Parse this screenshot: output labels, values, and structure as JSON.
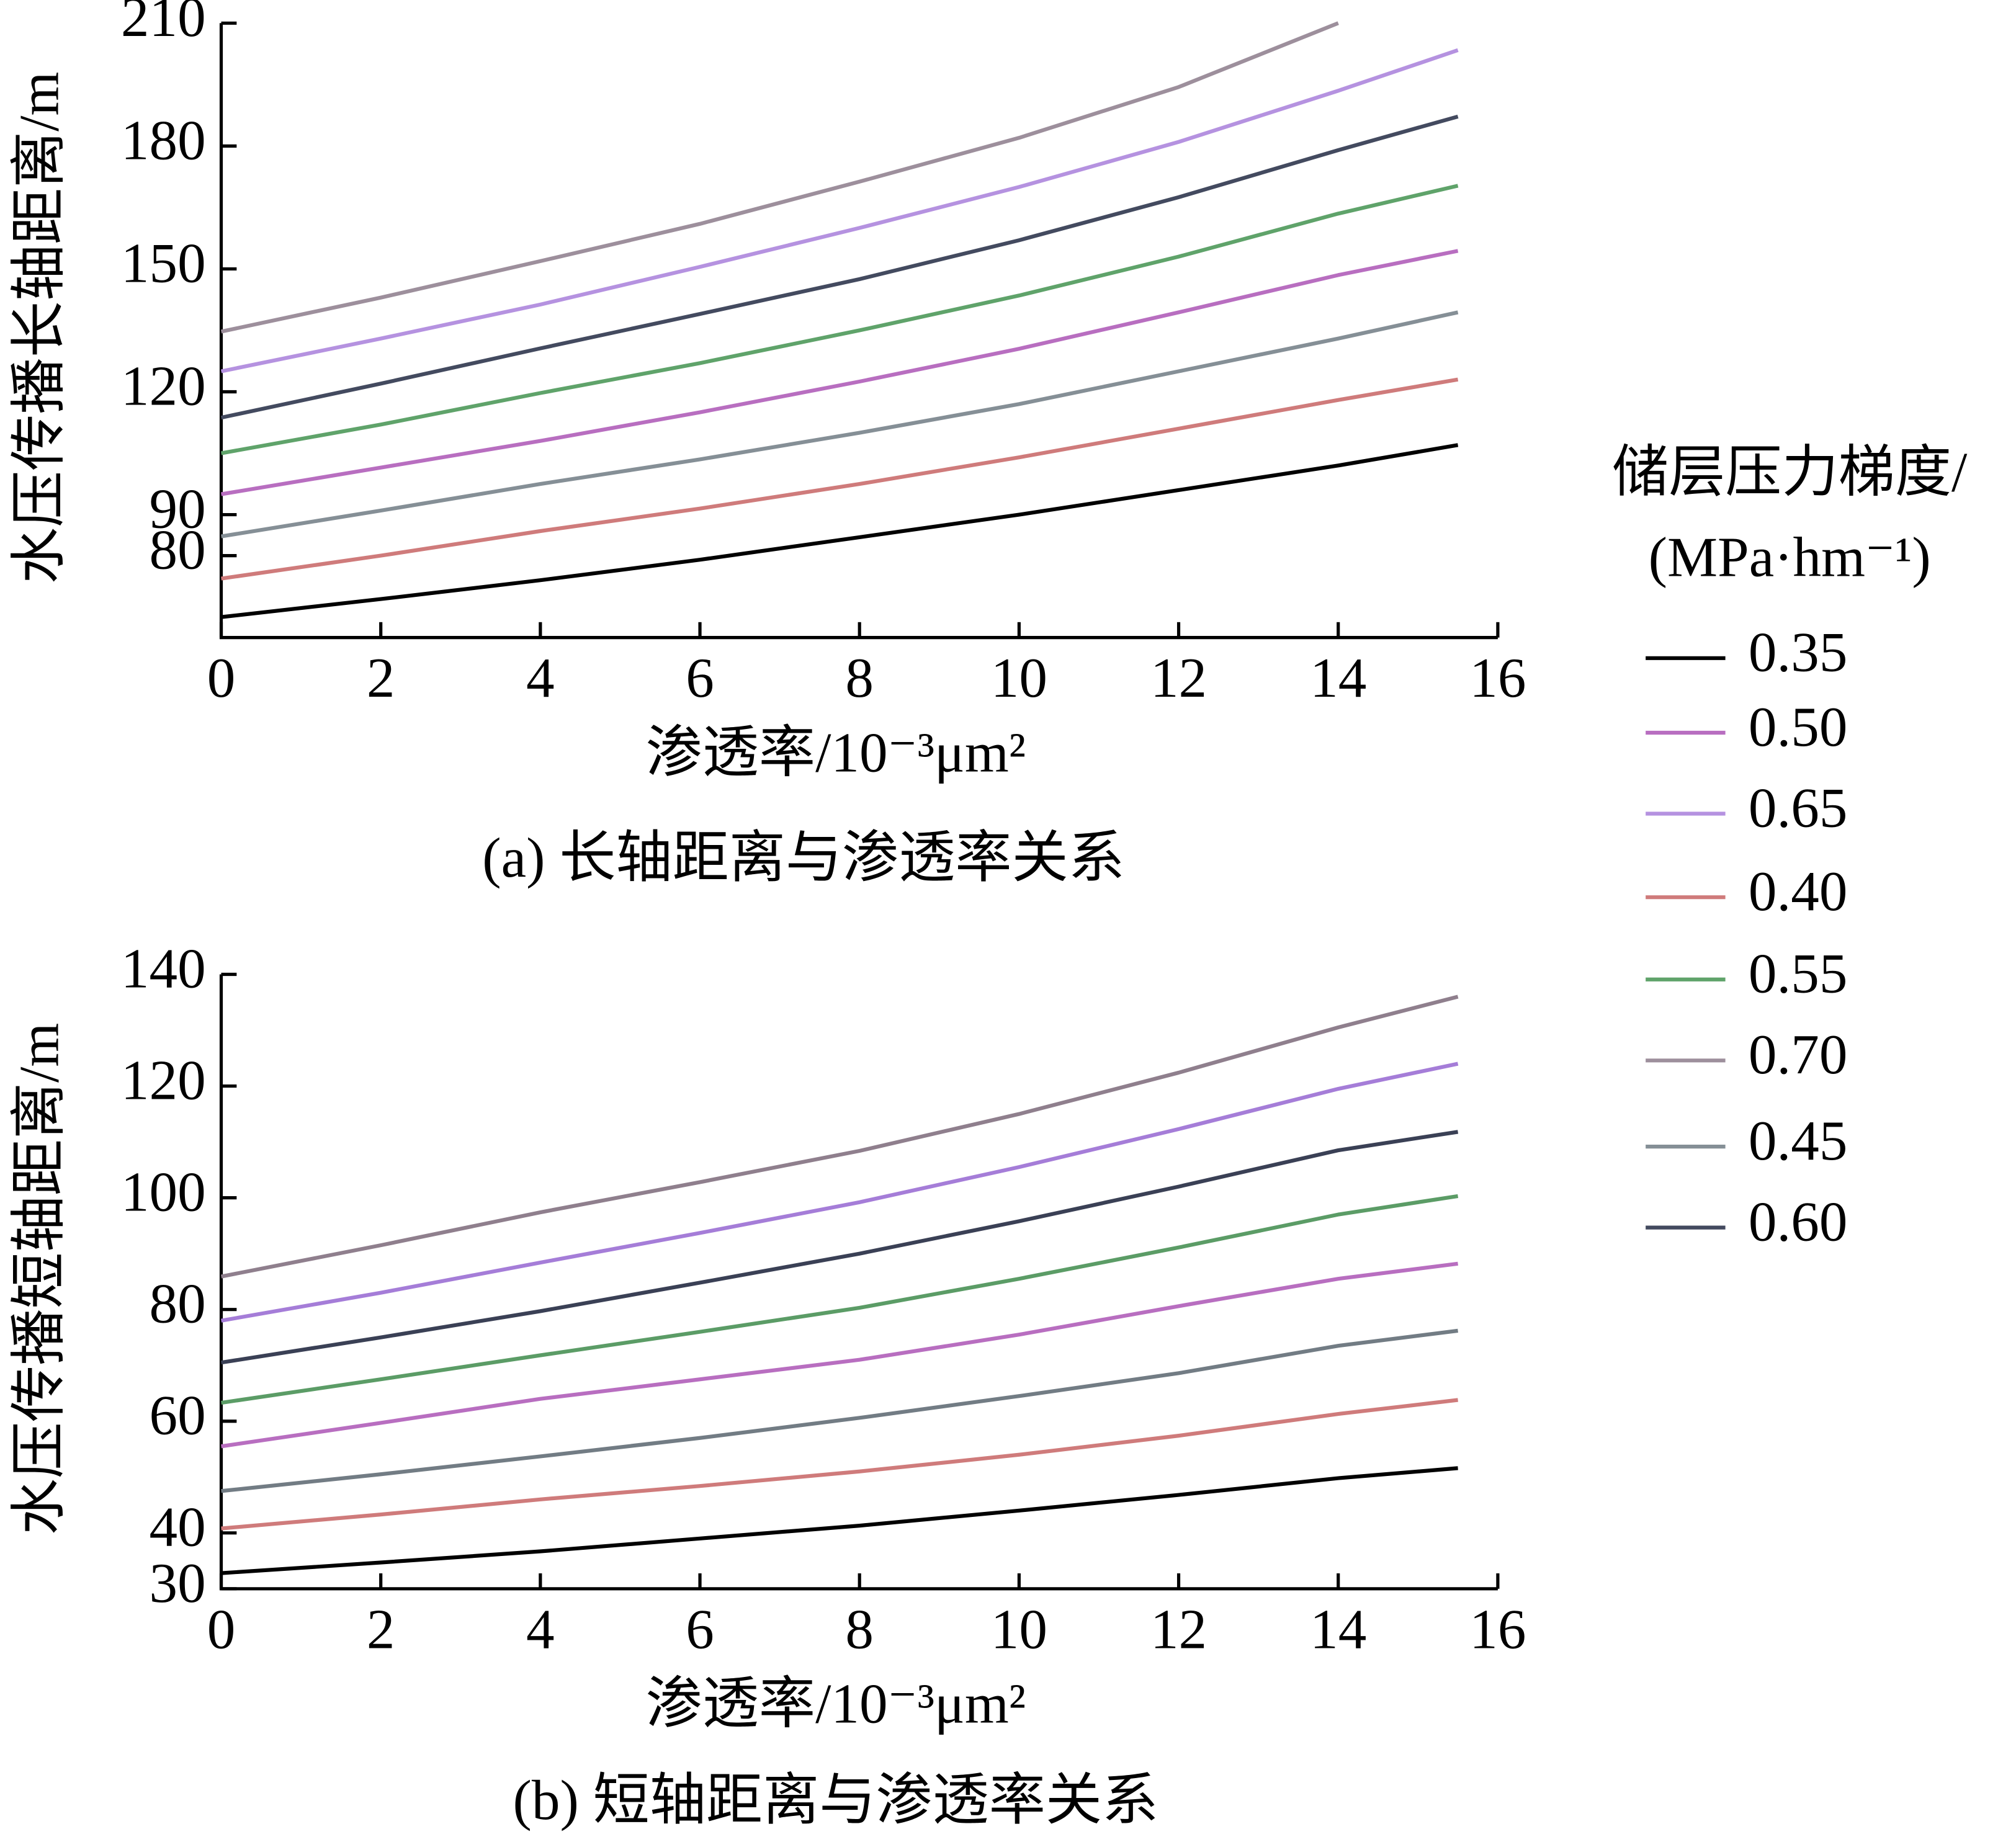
{
  "chart_data": [
    {
      "type": "line",
      "caption": "(a) 长轴距离与渗透率关系",
      "x_label": "渗透率/10⁻³μm²",
      "y_label": "水压传播长轴距离/m",
      "x": [
        0,
        2,
        4,
        6,
        8,
        10,
        12,
        14,
        15.5
      ],
      "xlim": [
        0,
        16
      ],
      "xticks": [
        0,
        2,
        4,
        6,
        8,
        10,
        12,
        14,
        16
      ],
      "ylim": [
        60,
        210
      ],
      "yticks": [
        80,
        90,
        120,
        150,
        180,
        210
      ],
      "series": [
        {
          "name": "0.35",
          "color": "#000000",
          "values": [
            65,
            69.4,
            74,
            79,
            84.5,
            90,
            96,
            102,
            107
          ]
        },
        {
          "name": "0.50",
          "color": "#b86ec0",
          "values": [
            95,
            101.5,
            108,
            115,
            122.5,
            130.5,
            139.4,
            148.5,
            154.4
          ]
        },
        {
          "name": "0.65",
          "color": "#b592e0",
          "values": [
            125,
            133,
            141.3,
            150.5,
            160,
            170,
            181,
            193.5,
            203.4
          ]
        },
        {
          "name": "0.40",
          "color": "#cf7b7b",
          "values": [
            74.4,
            80,
            86,
            91.5,
            97.5,
            104,
            111,
            118,
            123
          ]
        },
        {
          "name": "0.55",
          "color": "#5fa36a",
          "values": [
            105,
            112,
            119.7,
            127,
            135,
            143.5,
            153,
            163.5,
            170.3
          ]
        },
        {
          "name": "0.70",
          "color": "#9d8f9c",
          "values": [
            134.7,
            143,
            151.9,
            161,
            171.3,
            182,
            194.4,
            210,
            null
          ]
        },
        {
          "name": "0.45",
          "color": "#858f96",
          "values": [
            84.7,
            91,
            97.5,
            103.5,
            110,
            117,
            125,
            133,
            139.4
          ]
        },
        {
          "name": "0.60",
          "color": "#434a5f",
          "values": [
            113.7,
            122,
            130.6,
            139,
            147.5,
            157,
            167.5,
            179,
            187.2
          ]
        }
      ]
    },
    {
      "type": "line",
      "caption": "(b) 短轴距离与渗透率关系",
      "x_label": "渗透率/10⁻³μm²",
      "y_label": "水压传播短轴距离/m",
      "x": [
        0,
        2,
        4,
        6,
        8,
        10,
        12,
        14,
        15.5
      ],
      "xlim": [
        0,
        16
      ],
      "xticks": [
        0,
        2,
        4,
        6,
        8,
        10,
        12,
        14,
        16
      ],
      "ylim": [
        30,
        140
      ],
      "yticks": [
        30,
        40,
        60,
        80,
        100,
        120,
        140
      ],
      "series": [
        {
          "name": "0.35",
          "color": "#000000",
          "values": [
            32.8,
            34.7,
            36.7,
            39,
            41.3,
            44,
            46.8,
            49.8,
            51.6
          ]
        },
        {
          "name": "0.50",
          "color": "#b86ec0",
          "values": [
            55.5,
            59.7,
            64,
            67.5,
            71,
            75.5,
            80.6,
            85.5,
            88.2
          ]
        },
        {
          "name": "0.65",
          "color": "#a57dd8",
          "values": [
            78,
            83,
            88.4,
            93.7,
            99.2,
            105.5,
            112.3,
            119.5,
            124
          ]
        },
        {
          "name": "0.40",
          "color": "#cf7b7b",
          "values": [
            40.8,
            43.3,
            46,
            48.4,
            51,
            54,
            57.4,
            61.3,
            63.8
          ]
        },
        {
          "name": "0.55",
          "color": "#5b9c66",
          "values": [
            63.3,
            67.5,
            71.8,
            76,
            80.3,
            85.5,
            91.1,
            97,
            100.3
          ]
        },
        {
          "name": "0.70",
          "color": "#8f7f8d",
          "values": [
            85.9,
            91.5,
            97.4,
            102.8,
            108.4,
            115,
            122.4,
            130.5,
            136
          ]
        },
        {
          "name": "0.45",
          "color": "#727c84",
          "values": [
            47.5,
            50.5,
            53.7,
            57,
            60.6,
            64.5,
            68.6,
            73.5,
            76.2
          ]
        },
        {
          "name": "0.60",
          "color": "#3a4055",
          "values": [
            70.5,
            75,
            79.7,
            84.8,
            90,
            95.8,
            102,
            108.5,
            111.8
          ]
        }
      ]
    }
  ],
  "legend": {
    "title": [
      "储层压力梯度/",
      "(MPa·hm⁻¹)"
    ]
  }
}
